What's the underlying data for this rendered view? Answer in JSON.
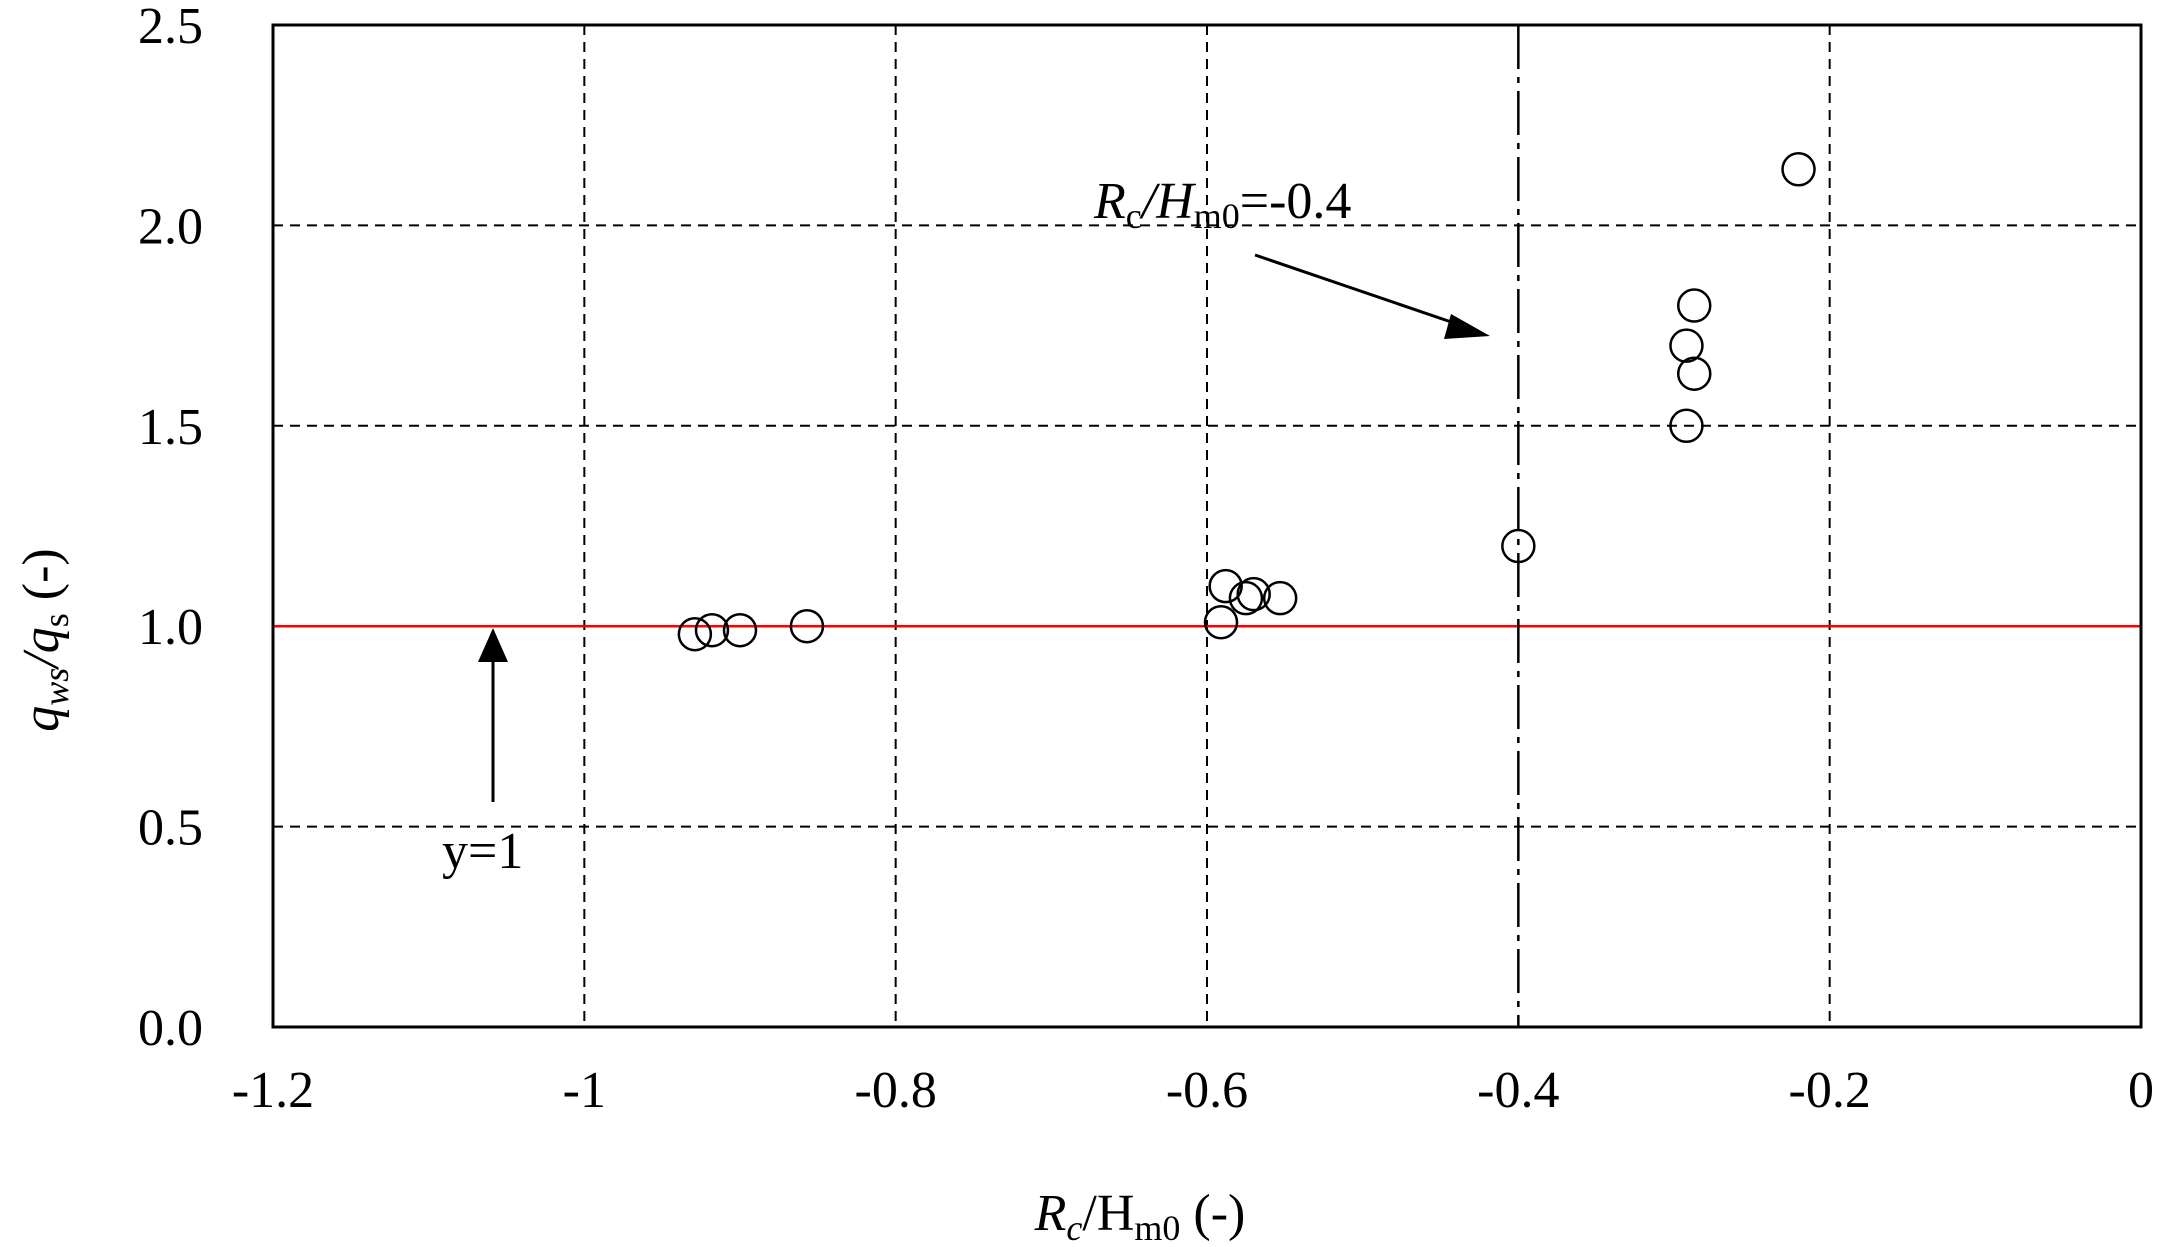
{
  "chart_data": {
    "type": "scatter",
    "title": "",
    "xlabel": {
      "main": "R",
      "sub1": "c",
      "mid": "/H",
      "sub2": "m0",
      "tail": " (-)"
    },
    "ylabel": {
      "main": "q",
      "sub1": "ws",
      "mid": "/q",
      "sub2": "s",
      "tail": " (-)"
    },
    "xlim": [
      -1.2,
      0
    ],
    "ylim": [
      0,
      2.5
    ],
    "xticks": [
      -1.2,
      -1,
      -0.8,
      -0.6,
      -0.4,
      -0.2,
      0
    ],
    "xtick_labels": [
      "-1.2",
      "-1",
      "-0.8",
      "-0.6",
      "-0.4",
      "-0.2",
      "0"
    ],
    "yticks": [
      0,
      0.5,
      1,
      1.5,
      2,
      2.5
    ],
    "ytick_labels": [
      "0.0",
      "0.5",
      "1.0",
      "1.5",
      "2.0",
      "2.5"
    ],
    "grid": true,
    "marker": "open-circle",
    "series": [
      {
        "points": [
          {
            "x": -0.929,
            "y": 0.98
          },
          {
            "x": -0.918,
            "y": 0.99
          },
          {
            "x": -0.9,
            "y": 0.99
          },
          {
            "x": -0.857,
            "y": 1.0
          },
          {
            "x": -0.591,
            "y": 1.01
          },
          {
            "x": -0.588,
            "y": 1.1
          },
          {
            "x": -0.575,
            "y": 1.07
          },
          {
            "x": -0.57,
            "y": 1.08
          },
          {
            "x": -0.553,
            "y": 1.07
          },
          {
            "x": -0.4,
            "y": 1.2
          },
          {
            "x": -0.292,
            "y": 1.7
          },
          {
            "x": -0.287,
            "y": 1.8
          },
          {
            "x": -0.287,
            "y": 1.63
          },
          {
            "x": -0.292,
            "y": 1.5
          },
          {
            "x": -0.22,
            "y": 2.14
          }
        ]
      }
    ],
    "reference_lines": [
      {
        "orientation": "horizontal",
        "value": 1,
        "color": "#ff0000",
        "style": "solid",
        "label": "y=1"
      },
      {
        "orientation": "vertical",
        "value": -0.4,
        "color": "#000000",
        "style": "dash-dot",
        "label": {
          "main": "R",
          "sub1": "c",
          "mid": "/H",
          "sub2": "m0",
          "tail": "=-0.4"
        }
      }
    ]
  }
}
